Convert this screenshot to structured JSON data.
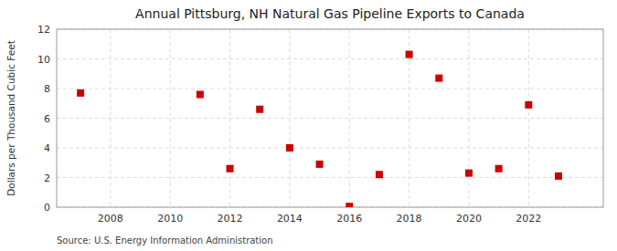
{
  "chart_data": {
    "type": "scatter",
    "title": "Annual Pittsburg, NH Natural Gas Pipeline Exports to Canada",
    "ylabel": "Dollars per Thousand Cubic Feet",
    "source": "Source: U.S. Energy Information Administration",
    "x": [
      2007,
      2011,
      2012,
      2013,
      2014,
      2015,
      2016,
      2017,
      2018,
      2019,
      2020,
      2021,
      2022,
      2023
    ],
    "values": [
      7.7,
      7.6,
      2.6,
      6.6,
      4.0,
      2.9,
      0.05,
      2.2,
      10.3,
      8.7,
      2.3,
      2.6,
      6.9,
      2.1
    ],
    "color": "#cc0000",
    "marker": "square",
    "xlim": [
      2006.2,
      2024.5
    ],
    "ylim": [
      0,
      12
    ],
    "xticks": [
      2008,
      2010,
      2012,
      2014,
      2016,
      2018,
      2020,
      2022
    ],
    "yticks": [
      0,
      2,
      4,
      6,
      8,
      10,
      12
    ],
    "grid": true
  }
}
